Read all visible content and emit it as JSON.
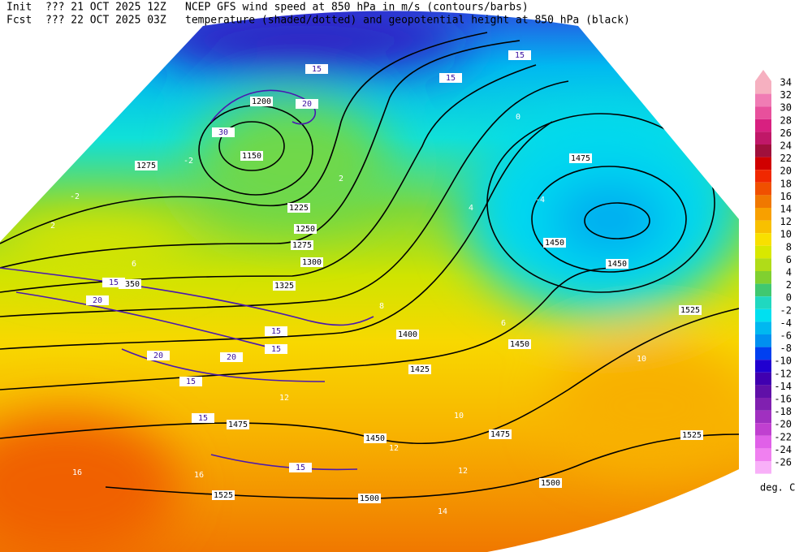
{
  "header": {
    "init_label": "Init",
    "init_time": "??? 21 OCT 2025 12Z",
    "fcst_label": "Fcst",
    "fcst_time": "??? 22 OCT 2025 03Z",
    "title_line1": "NCEP GFS wind speed at 850 hPa in m/s (contours/barbs)",
    "title_line2": "temperature (shaded/dotted) and geopotential height at 850 hPa (black)"
  },
  "colorbar": {
    "unit": "deg. C",
    "levels": [
      34,
      32,
      30,
      28,
      26,
      24,
      22,
      20,
      18,
      16,
      14,
      12,
      10,
      8,
      6,
      4,
      2,
      0,
      -2,
      -4,
      -6,
      -8,
      -10,
      -12,
      -14,
      -16,
      -18,
      -20,
      -22,
      -24,
      -26
    ],
    "colors": [
      "#f6b0c0",
      "#f07cb4",
      "#e8509c",
      "#d82080",
      "#c01868",
      "#a0103c",
      "#d00000",
      "#f02800",
      "#f05000",
      "#f07800",
      "#f8a000",
      "#f8c000",
      "#f8e000",
      "#d8e800",
      "#b0dc18",
      "#80d030",
      "#40c870",
      "#20d8c0",
      "#00e0f0",
      "#00b8f0",
      "#0090f0",
      "#0040f0",
      "#2000d0",
      "#4000b0",
      "#6010a8",
      "#8020b0",
      "#a030c0",
      "#c040d0",
      "#e060e8",
      "#f080f0",
      "#f8b0f8"
    ]
  },
  "height_labels": [
    1150,
    1200,
    1225,
    1250,
    1275,
    1300,
    1325,
    1350,
    1400,
    1425,
    1450,
    1450,
    1475,
    1475,
    1500,
    1500,
    1525,
    1525,
    1525,
    1475,
    1450,
    1450,
    1275
  ],
  "wind_labels": [
    15,
    15,
    20,
    30,
    20,
    15,
    15,
    15,
    20,
    15,
    15,
    15,
    15,
    20
  ],
  "temperature_labels": [
    -2,
    2,
    4,
    6,
    8,
    12,
    12,
    12,
    14,
    16,
    16,
    10,
    -4,
    -2,
    0,
    2,
    6,
    10
  ]
}
